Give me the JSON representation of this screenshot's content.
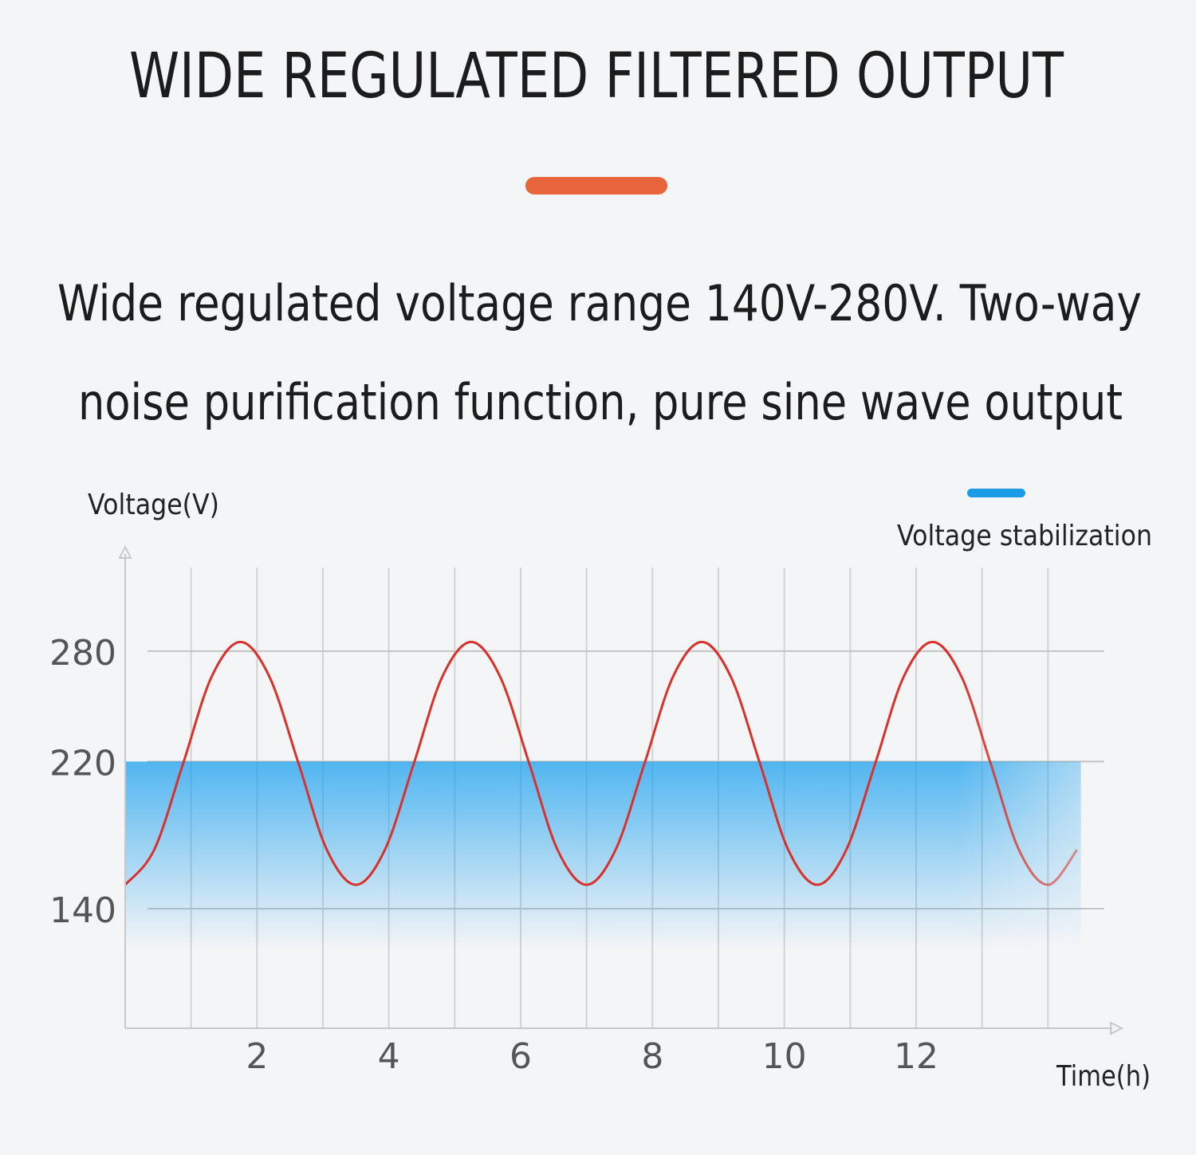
{
  "title": "WIDE REGULATED FILTERED OUTPUT",
  "subtitle": [
    "Wide regulated voltage range 140V-280V. Two-way",
    "noise purification function, pure sine wave output"
  ],
  "chart_data": {
    "type": "line",
    "ylabel": "Voltage(V)",
    "xlabel": "Time(h)",
    "xlim": [
      0,
      15
    ],
    "ylim": [
      75,
      335
    ],
    "xticks": [
      2,
      4,
      6,
      8,
      10,
      12
    ],
    "xgrid": [
      1,
      2,
      3,
      4,
      5,
      6,
      7,
      8,
      9,
      10,
      11,
      12,
      13,
      14
    ],
    "yticks": [
      140,
      220,
      280
    ],
    "grid": true,
    "legend": "upper right",
    "series": [
      {
        "name": "Voltage stabilization",
        "color": "#1a9be6",
        "fill": true,
        "x": [
          0,
          14.5
        ],
        "values": [
          220,
          220
        ]
      },
      {
        "color": "#d9312b",
        "x": [
          0,
          0.44,
          0.88,
          1.31,
          1.75,
          2.19,
          2.63,
          3.06,
          3.5,
          3.94,
          4.38,
          4.81,
          5.25,
          5.69,
          6.13,
          6.56,
          7,
          7.44,
          7.88,
          8.31,
          8.75,
          9.19,
          9.63,
          10.06,
          10.5,
          10.94,
          11.38,
          11.81,
          12.25,
          12.69,
          13.13,
          13.56,
          14,
          14.44
        ],
        "values": [
          153,
          172,
          219,
          266,
          285,
          266,
          219,
          172,
          153,
          172,
          219,
          266,
          285,
          266,
          219,
          172,
          153,
          172,
          219,
          266,
          285,
          266,
          219,
          172,
          153,
          172,
          219,
          266,
          285,
          266,
          219,
          172,
          153,
          172
        ]
      }
    ]
  }
}
